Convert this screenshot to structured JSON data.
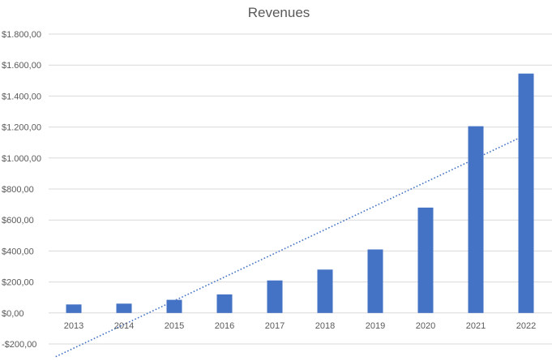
{
  "chart_data": {
    "type": "bar",
    "title": "Revenues",
    "xlabel": "",
    "ylabel": "",
    "categories": [
      "2013",
      "2014",
      "2015",
      "2016",
      "2017",
      "2018",
      "2019",
      "2020",
      "2021",
      "2022"
    ],
    "values": [
      55,
      60,
      85,
      120,
      210,
      280,
      410,
      680,
      1205,
      1545
    ],
    "ylim": [
      -200,
      1800
    ],
    "y_ticks": [
      -200,
      0,
      200,
      400,
      600,
      800,
      1000,
      1200,
      1400,
      1600,
      1800
    ],
    "y_tick_labels": [
      "-$200,00",
      "$0,00",
      "$200,00",
      "$400,00",
      "$600,00",
      "$800,00",
      "$1.000,00",
      "$1.200,00",
      "$1.400,00",
      "$1.600,00",
      "$1.800,00"
    ],
    "trendline": {
      "type": "linear",
      "style": "dotted",
      "start": -227,
      "end": 1150
    },
    "grid": true,
    "legend": "none",
    "colors": {
      "bar": "#4472c4",
      "trendline": "#4472c4",
      "grid": "#d9d9d9",
      "text": "#595959"
    }
  }
}
